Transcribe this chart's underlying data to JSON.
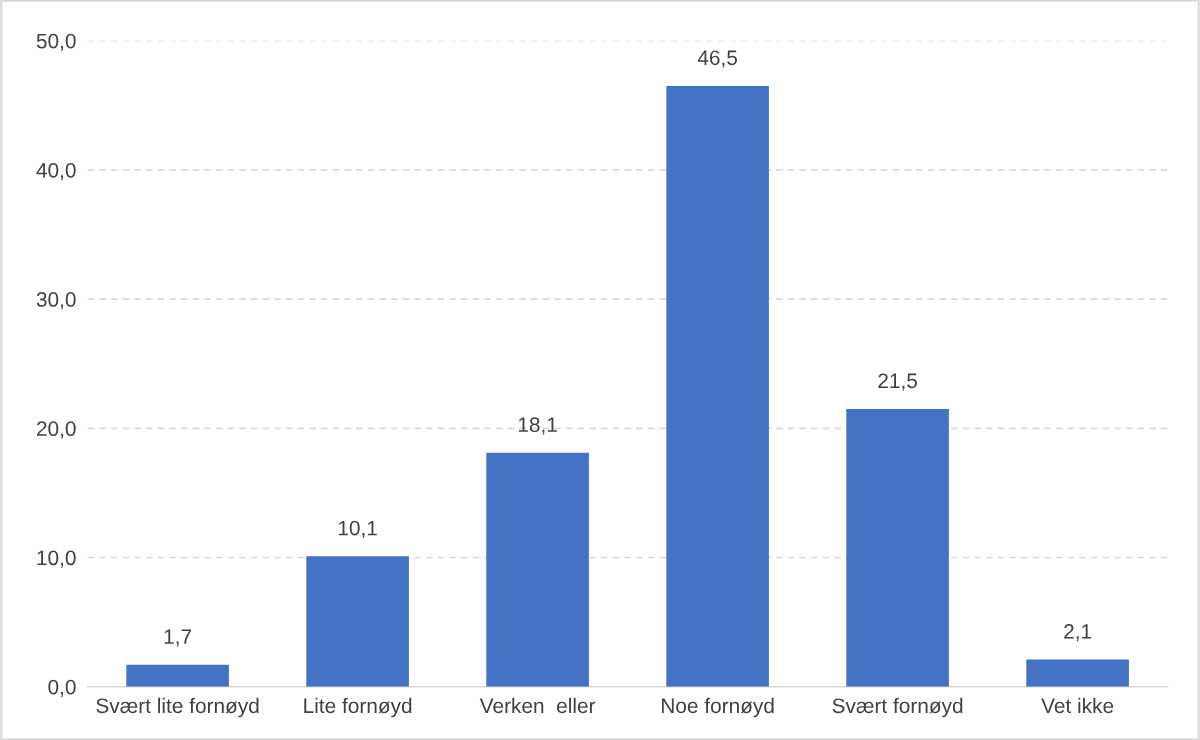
{
  "chart_data": {
    "type": "bar",
    "categories": [
      "Svært lite fornøyd",
      "Lite fornøyd",
      "Verken  eller",
      "Noe fornøyd",
      "Svært fornøyd",
      "Vet ikke"
    ],
    "values": [
      1.7,
      10.1,
      18.1,
      46.5,
      21.5,
      2.1
    ],
    "value_labels": [
      "1,7",
      "10,1",
      "18,1",
      "46,5",
      "21,5",
      "2,1"
    ],
    "color": "#4472c4",
    "ylim": [
      0,
      50
    ],
    "yticks": [
      {
        "value": 0,
        "label": "0,0"
      },
      {
        "value": 10,
        "label": "10,0"
      },
      {
        "value": 20,
        "label": "20,0"
      },
      {
        "value": 30,
        "label": "30,0"
      },
      {
        "value": 40,
        "label": "40,0"
      },
      {
        "value": 50,
        "label": "50,0"
      }
    ],
    "grid": "y"
  }
}
